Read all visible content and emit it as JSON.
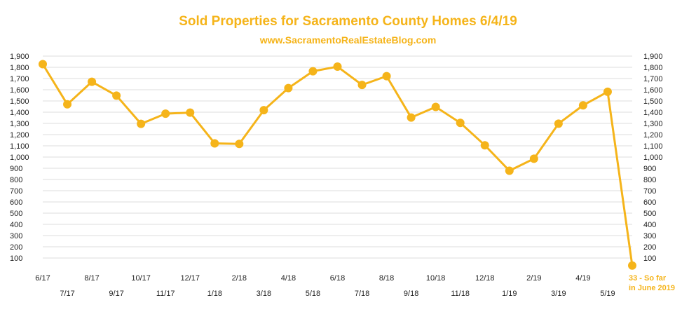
{
  "chart_data": {
    "type": "line",
    "title": "Sold Properties for Sacramento County Homes 6/4/19",
    "subtitle": "www.SacramentoRealEstateBlog.com",
    "categories": [
      "6/17",
      "7/17",
      "8/17",
      "9/17",
      "10/17",
      "11/17",
      "12/17",
      "1/18",
      "2/18",
      "3/18",
      "4/18",
      "5/18",
      "6/18",
      "7/18",
      "8/18",
      "9/18",
      "10/18",
      "11/18",
      "12/18",
      "1/19",
      "2/19",
      "3/19",
      "4/19",
      "5/19",
      "33 - So far in June 2019"
    ],
    "series": [
      {
        "values": [
          1828,
          1470,
          1671,
          1548,
          1296,
          1387,
          1396,
          1122,
          1117,
          1418,
          1615,
          1765,
          1806,
          1643,
          1721,
          1352,
          1447,
          1305,
          1105,
          878,
          985,
          1298,
          1461,
          1582,
          33
        ]
      }
    ],
    "ylim": [
      0,
      1900
    ],
    "yticks": [
      "100",
      "200",
      "300",
      "400",
      "500",
      "600",
      "700",
      "800",
      "900",
      "1,000",
      "1,100",
      "1,200",
      "1,300",
      "1,400",
      "1,500",
      "1,600",
      "1,700",
      "1,800",
      "1,900"
    ],
    "grid": true,
    "colors": {
      "line": "#f5b41a",
      "grid": "#dcdcdc",
      "note": "#f5b41a"
    }
  }
}
